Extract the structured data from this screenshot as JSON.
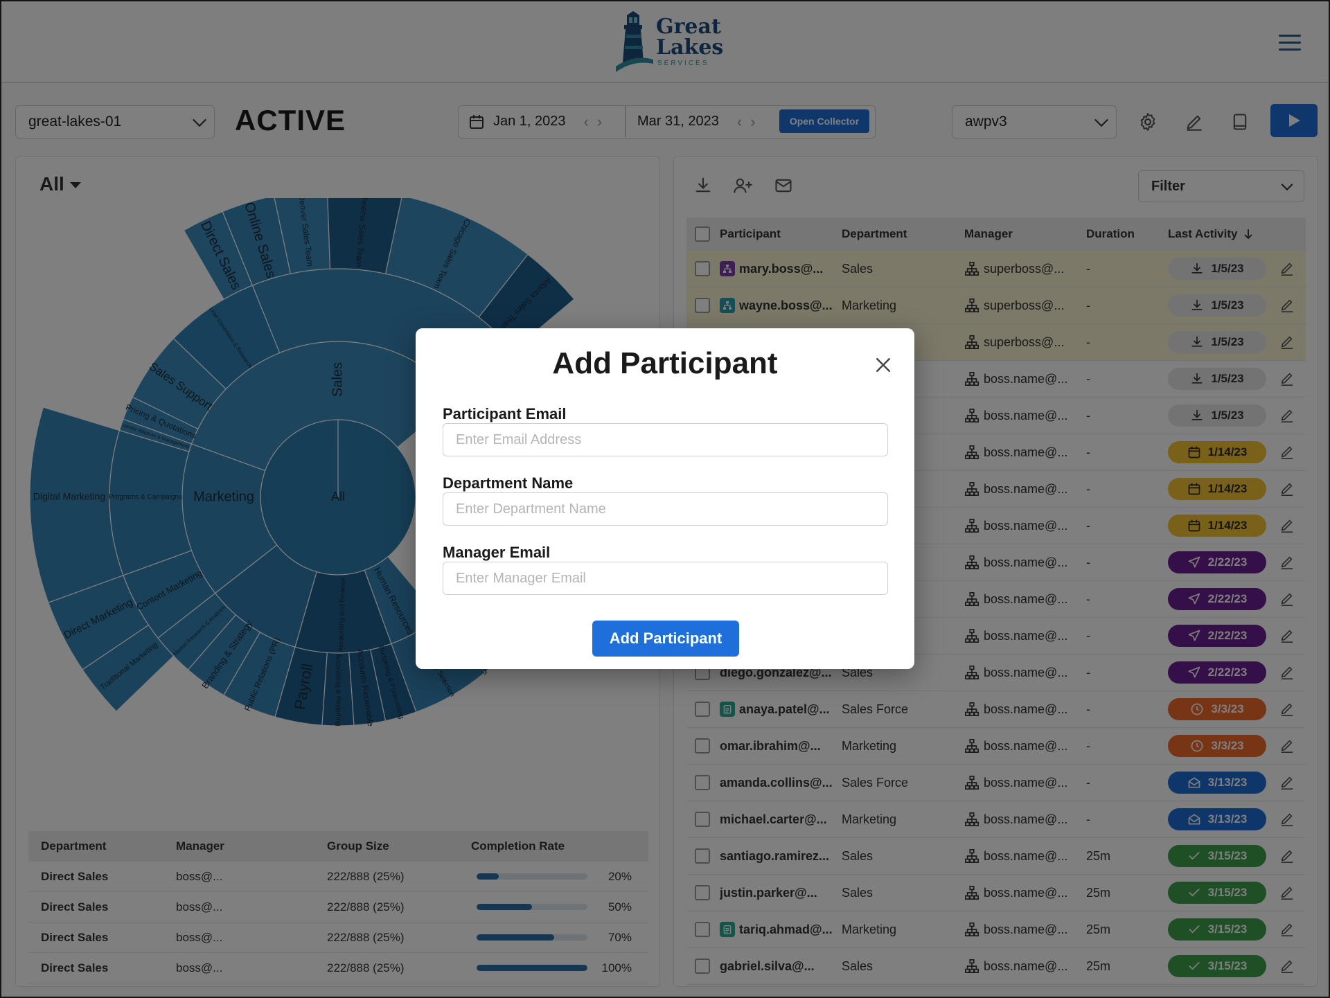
{
  "logo": {
    "line1": "Great",
    "line2": "Lakes",
    "line3": "SERVICES"
  },
  "toolbar": {
    "project_select": "great-lakes-01",
    "status_title": "ACTIVE",
    "start_date": "Jan 1, 2023",
    "end_date": "Mar 31, 2023",
    "open_collector": "Open Collector",
    "version_select": "awpv3"
  },
  "left": {
    "scope_dropdown": "All",
    "sunburst": {
      "center": "All",
      "ring1": [
        "Sales",
        "Marketing"
      ],
      "labels": [
        "Direct Sales",
        "Online Sales",
        "Denver Sales Team",
        "Phoenix Sales Team",
        "Chicago Sales Team",
        "Atlanta Sales Team",
        "Lead Generation & Research",
        "Sales Support",
        "Pricing & Quotations",
        "Vendor Alliances & Management",
        "Digital Marketing",
        "Programs & Campaigns",
        "Direct Marketing",
        "Traditional Marketing",
        "Content Marketing",
        "Market Research & Analysis",
        "Branding & Strategy",
        "Public Relations (PR)",
        "Payroll",
        "Accounting & Reporting",
        "Accounts Receivable",
        "Budgeting & Forecasting",
        "Accounting and Finance",
        "Human Resources",
        "Recruitment & Selection",
        "Compensation and Benefits",
        "& Development",
        "Management"
      ]
    },
    "table": {
      "headers": [
        "Department",
        "Manager",
        "Group Size",
        "Completion Rate"
      ],
      "rows": [
        {
          "department": "Direct Sales",
          "manager": "boss@...",
          "group_size": "222/888 (25%)",
          "rate": 0.2,
          "rate_label": "20%"
        },
        {
          "department": "Direct Sales",
          "manager": "boss@...",
          "group_size": "222/888 (25%)",
          "rate": 0.5,
          "rate_label": "50%"
        },
        {
          "department": "Direct Sales",
          "manager": "boss@...",
          "group_size": "222/888 (25%)",
          "rate": 0.7,
          "rate_label": "70%"
        },
        {
          "department": "Direct Sales",
          "manager": "boss@...",
          "group_size": "222/888 (25%)",
          "rate": 1.0,
          "rate_label": "100%"
        }
      ]
    }
  },
  "right": {
    "filter": "Filter",
    "headers": [
      "Participant",
      "Department",
      "Manager",
      "Duration",
      "Last Activity"
    ],
    "rows": [
      {
        "participant": "mary.boss@...",
        "department": "Sales",
        "manager": "superboss@...",
        "duration": "-",
        "activity": "1/5/23",
        "kind": "download",
        "hl": true,
        "badge": "purple"
      },
      {
        "participant": "wayne.boss@...",
        "department": "Marketing",
        "manager": "superboss@...",
        "duration": "-",
        "activity": "1/5/23",
        "kind": "download",
        "hl": true,
        "badge": "teal"
      },
      {
        "participant": "",
        "department": "",
        "manager": "superboss@...",
        "duration": "-",
        "activity": "1/5/23",
        "kind": "download",
        "hl": true,
        "badge": ""
      },
      {
        "participant": "",
        "department": "",
        "manager": "boss.name@...",
        "duration": "-",
        "activity": "1/5/23",
        "kind": "download",
        "hl": false,
        "badge": ""
      },
      {
        "participant": "",
        "department": "",
        "manager": "boss.name@...",
        "duration": "-",
        "activity": "1/5/23",
        "kind": "download",
        "hl": false,
        "badge": ""
      },
      {
        "participant": "",
        "department": "",
        "manager": "boss.name@...",
        "duration": "-",
        "activity": "1/14/23",
        "kind": "calendar",
        "hl": false,
        "badge": ""
      },
      {
        "participant": "",
        "department": "",
        "manager": "boss.name@...",
        "duration": "-",
        "activity": "1/14/23",
        "kind": "calendar",
        "hl": false,
        "badge": ""
      },
      {
        "participant": "",
        "department": "",
        "manager": "boss.name@...",
        "duration": "-",
        "activity": "1/14/23",
        "kind": "calendar",
        "hl": false,
        "badge": ""
      },
      {
        "participant": "",
        "department": "",
        "manager": "boss.name@...",
        "duration": "-",
        "activity": "2/22/23",
        "kind": "sent",
        "hl": false,
        "badge": ""
      },
      {
        "participant": "",
        "department": "",
        "manager": "boss.name@...",
        "duration": "-",
        "activity": "2/22/23",
        "kind": "sent",
        "hl": false,
        "badge": ""
      },
      {
        "participant": "",
        "department": "",
        "manager": "boss.name@...",
        "duration": "-",
        "activity": "2/22/23",
        "kind": "sent",
        "hl": false,
        "badge": ""
      },
      {
        "participant": "diego.gonzalez@...",
        "department": "Sales",
        "manager": "boss.name@...",
        "duration": "-",
        "activity": "2/22/23",
        "kind": "sent",
        "hl": false,
        "badge": ""
      },
      {
        "participant": "anaya.patel@...",
        "department": "Sales Force",
        "manager": "boss.name@...",
        "duration": "-",
        "activity": "3/3/23",
        "kind": "clock",
        "hl": false,
        "badge": "clipboard"
      },
      {
        "participant": "omar.ibrahim@...",
        "department": "Marketing",
        "manager": "boss.name@...",
        "duration": "-",
        "activity": "3/3/23",
        "kind": "clock",
        "hl": false,
        "badge": ""
      },
      {
        "participant": "amanda.collins@...",
        "department": "Sales Force",
        "manager": "boss.name@...",
        "duration": "-",
        "activity": "3/13/23",
        "kind": "mail",
        "hl": false,
        "badge": ""
      },
      {
        "participant": "michael.carter@...",
        "department": "Marketing",
        "manager": "boss.name@...",
        "duration": "-",
        "activity": "3/13/23",
        "kind": "mail",
        "hl": false,
        "badge": ""
      },
      {
        "participant": "santiago.ramirez...",
        "department": "Sales",
        "manager": "boss.name@...",
        "duration": "25m",
        "activity": "3/15/23",
        "kind": "check",
        "hl": false,
        "badge": ""
      },
      {
        "participant": "justin.parker@...",
        "department": "Sales",
        "manager": "boss.name@...",
        "duration": "25m",
        "activity": "3/15/23",
        "kind": "check",
        "hl": false,
        "badge": ""
      },
      {
        "participant": "tariq.ahmad@...",
        "department": "Marketing",
        "manager": "boss.name@...",
        "duration": "25m",
        "activity": "3/15/23",
        "kind": "check",
        "hl": false,
        "badge": "clipboard"
      },
      {
        "participant": "gabriel.silva@...",
        "department": "Sales",
        "manager": "boss.name@...",
        "duration": "25m",
        "activity": "3/15/23",
        "kind": "check",
        "hl": false,
        "badge": ""
      }
    ],
    "pill_colors": {
      "download": {
        "bg": "#e6e6e6",
        "fg": "#333333"
      },
      "calendar": {
        "bg": "#f2c233",
        "fg": "#2a2a2a"
      },
      "sent": {
        "bg": "#6b1f8f",
        "fg": "#ffffff"
      },
      "clock": {
        "bg": "#ee6a2c",
        "fg": "#ffffff"
      },
      "mail": {
        "bg": "#1d6cd4",
        "fg": "#ffffff"
      },
      "check": {
        "bg": "#3f9e4a",
        "fg": "#ffffff"
      }
    }
  },
  "modal": {
    "title": "Add Participant",
    "email_label": "Participant Email",
    "email_placeholder": "Enter Email Address",
    "dept_label": "Department Name",
    "dept_placeholder": "Enter Department Name",
    "manager_label": "Manager Email",
    "manager_placeholder": "Enter Manager Email",
    "submit": "Add Participant"
  },
  "colors": {
    "accent": "#1e6fd9",
    "brand": "#1d4d7a"
  }
}
